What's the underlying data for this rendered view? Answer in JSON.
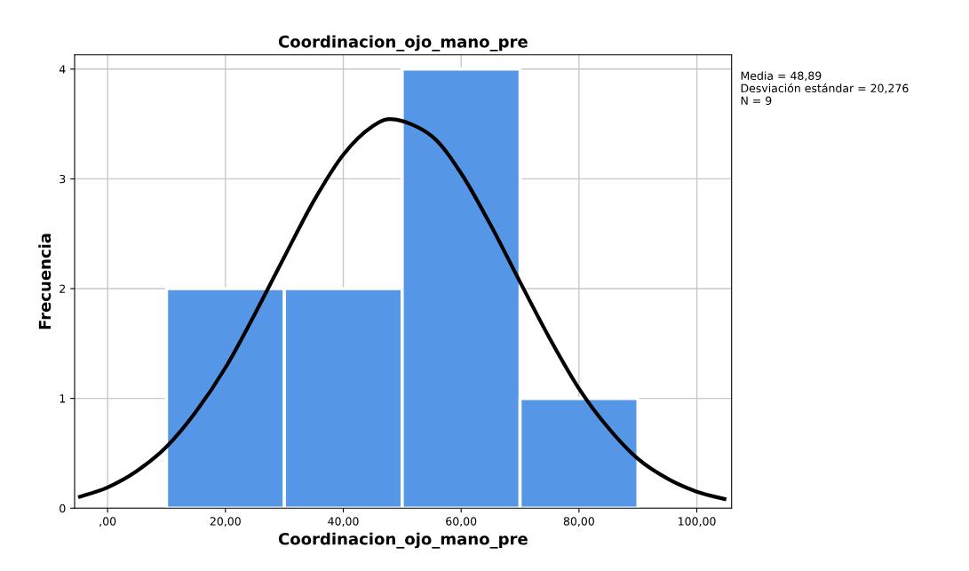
{
  "chart_data": {
    "type": "histogram",
    "title": "Coordinacion_ojo_mano_pre",
    "xlabel": "Coordinacion_ojo_mano_pre",
    "ylabel": "Frecuencia",
    "bins": [
      10,
      30,
      50,
      70,
      90
    ],
    "values": [
      2,
      2,
      4,
      1
    ],
    "color": "#5596e6",
    "series": [
      {
        "type": "line",
        "color": "#000000",
        "x": [
          -5,
          0,
          5,
          10,
          15,
          20,
          25,
          30,
          35,
          40,
          45,
          48.89,
          55,
          60,
          65,
          70,
          75,
          80,
          85,
          90,
          95,
          100,
          105
        ],
        "values": [
          0.1,
          0.19,
          0.34,
          0.56,
          0.88,
          1.28,
          1.77,
          2.29,
          2.8,
          3.22,
          3.48,
          3.54,
          3.39,
          3.05,
          2.58,
          2.06,
          1.55,
          1.09,
          0.73,
          0.45,
          0.27,
          0.15,
          0.08
        ]
      }
    ],
    "xlim": [
      -5.6,
      105.9
    ],
    "ylim": [
      0,
      4.13
    ],
    "xticks": [
      {
        "value": 0,
        "label": ",00"
      },
      {
        "value": 20,
        "label": "20,00"
      },
      {
        "value": 40,
        "label": "40,00"
      },
      {
        "value": 60,
        "label": "60,00"
      },
      {
        "value": 80,
        "label": "80,00"
      },
      {
        "value": 100,
        "label": "100,00"
      }
    ],
    "yticks": [
      0,
      1,
      2,
      3,
      4
    ],
    "grid": true,
    "annotations": [
      "Media = 48,89\nDesviación estándar = 20,276\nN = 9"
    ]
  }
}
